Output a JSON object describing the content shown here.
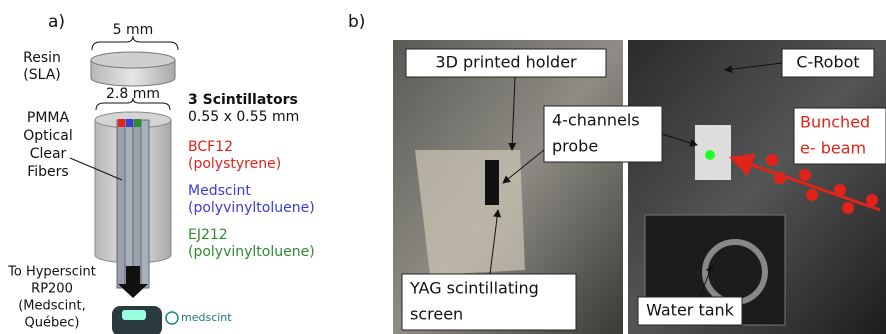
{
  "panel_a": {
    "label": "a)",
    "resin_width": "5 mm",
    "resin_label": [
      "Resin",
      "(SLA)"
    ],
    "fiber_width": "2.8 mm",
    "fibers_label": [
      "PMMA",
      "Optical",
      "Clear",
      "Fibers"
    ],
    "scintillators": {
      "title": "3 Scintillators",
      "size": "0.55 x 0.55 mm",
      "items": [
        {
          "name": "BCF12",
          "material": "(polystyrene)",
          "color": "#e2231a"
        },
        {
          "name": "Medscint",
          "material": "(polyvinyltoluene)",
          "color": "#3b3bd6"
        },
        {
          "name": "EJ212",
          "material": "(polyvinyltoluene)",
          "color": "#2e8b2e"
        }
      ]
    },
    "readout": [
      "To Hyperscint",
      "RP200",
      "(Medscint,",
      "Québec)"
    ],
    "logo": "medscint"
  },
  "panel_b": {
    "label": "b)",
    "holder": "3D printed holder",
    "probe": [
      "4-channels",
      "probe"
    ],
    "screen": [
      "YAG scintillating",
      "screen"
    ],
    "robot": "C-Robot",
    "beam": [
      "Bunched",
      "e- beam"
    ],
    "tank": "Water tank"
  }
}
